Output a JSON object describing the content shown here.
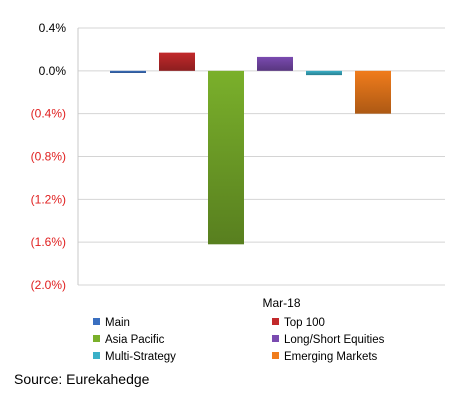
{
  "chart_data": {
    "type": "bar",
    "categories": [
      "Mar-18"
    ],
    "series": [
      {
        "name": "Main",
        "values": [
          -0.02
        ],
        "color": "#3a6fc0"
      },
      {
        "name": "Top 100",
        "values": [
          0.17
        ],
        "color": "#c2292b"
      },
      {
        "name": "Asia Pacific",
        "values": [
          -1.62
        ],
        "color": "#7ab02b"
      },
      {
        "name": "Long/Short Equities",
        "values": [
          0.13
        ],
        "color": "#7a4bb0"
      },
      {
        "name": "Multi-Strategy",
        "values": [
          -0.04
        ],
        "color": "#3ab0c8"
      },
      {
        "name": "Emerging Markets",
        "values": [
          -0.4
        ],
        "color": "#f07c1c"
      }
    ],
    "ylim": [
      -2.0,
      0.4
    ],
    "yticks": [
      {
        "value": 0.4,
        "label": "0.4%",
        "color": "#000000"
      },
      {
        "value": 0.0,
        "label": "0.0%",
        "color": "#000000"
      },
      {
        "value": -0.4,
        "label": "(0.4%)",
        "color": "#e02020"
      },
      {
        "value": -0.8,
        "label": "(0.8%)",
        "color": "#e02020"
      },
      {
        "value": -1.2,
        "label": "(1.2%)",
        "color": "#e02020"
      },
      {
        "value": -1.6,
        "label": "(1.6%)",
        "color": "#e02020"
      },
      {
        "value": -2.0,
        "label": "(2.0%)",
        "color": "#e02020"
      }
    ],
    "grid": true,
    "legend_position": "bottom"
  },
  "source": "Source: Eurekahedge"
}
